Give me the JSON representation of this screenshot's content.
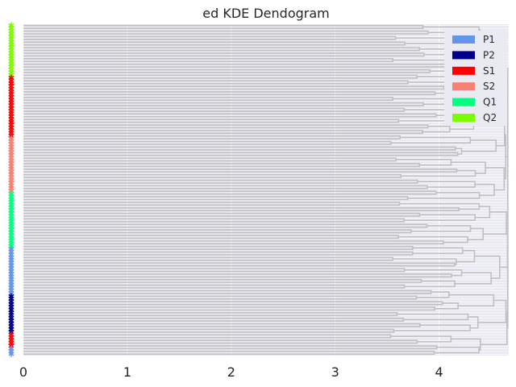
{
  "chart_data": {
    "type": "dendrogram",
    "title": "ed KDE Dendogram",
    "xlabel": "",
    "ylabel": "",
    "xlim": [
      0,
      4.67
    ],
    "x_ticks": [
      "0",
      "1",
      "2",
      "3",
      "4"
    ],
    "x_tick_values": [
      0,
      1,
      2,
      3,
      4
    ],
    "grid": true,
    "orientation": "left",
    "leaf_count": 120,
    "max_merge_height": 4.66,
    "link_color": "#c0c0c0",
    "legend_position": "top-right",
    "legend": [
      {
        "label": "P1",
        "color": "#6495ed"
      },
      {
        "label": "P2",
        "color": "#00008b"
      },
      {
        "label": "S1",
        "color": "#ff0000"
      },
      {
        "label": "S2",
        "color": "#fa8072"
      },
      {
        "label": "Q1",
        "color": "#00ff7f"
      },
      {
        "label": "Q2",
        "color": "#7cfc00"
      }
    ],
    "leaf_groups_top_to_bottom": [
      {
        "label": "Q2",
        "count": 19
      },
      {
        "label": "S1",
        "count": 22
      },
      {
        "label": "S2",
        "count": 20
      },
      {
        "label": "Q1",
        "count": 20
      },
      {
        "label": "P1",
        "count": 17
      },
      {
        "label": "P2",
        "count": 14
      },
      {
        "label": "S1",
        "count": 5
      },
      {
        "label": "P1",
        "count": 3
      }
    ],
    "merge_height_bands": [
      {
        "level": 1,
        "range": [
          3.5,
          4.2
        ]
      },
      {
        "level": 2,
        "range": [
          4.0,
          4.4
        ]
      },
      {
        "level": 3,
        "range": [
          4.3,
          4.55
        ]
      },
      {
        "level": 4,
        "range": [
          4.55,
          4.66
        ]
      }
    ]
  }
}
